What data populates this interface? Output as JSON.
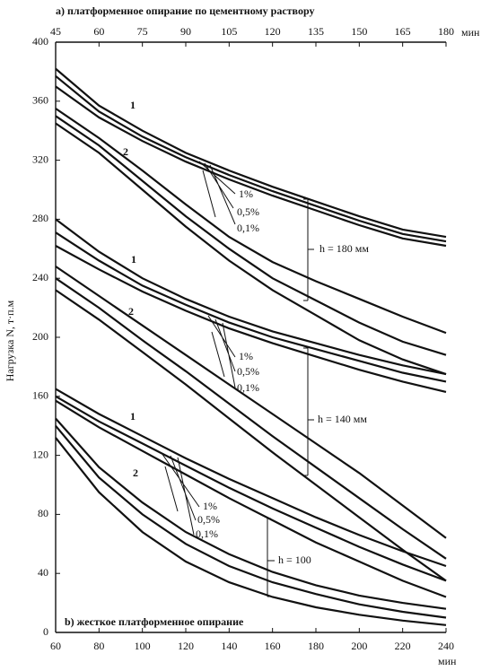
{
  "chart_data": {
    "type": "line",
    "title": "а) платформенное опирание по цементному раствору",
    "subtitle": "b) жесткое платформенное опирание",
    "ylabel": "Нагрузка N, т·п.м",
    "xlabel": "мин",
    "x2label": "мин",
    "xlim": [
      60,
      240
    ],
    "xticks": [
      60,
      80,
      100,
      120,
      140,
      160,
      180,
      200,
      220,
      240
    ],
    "x2lim": [
      45,
      180
    ],
    "x2ticks": [
      45,
      60,
      75,
      90,
      105,
      120,
      135,
      150,
      165,
      180
    ],
    "ylim": [
      0,
      400
    ],
    "yticks": [
      0,
      40,
      80,
      120,
      160,
      200,
      240,
      280,
      320,
      360,
      400
    ],
    "color": "#111111",
    "series": [
      {
        "axis": "x2",
        "x": [
          45,
          60,
          75,
          90,
          105,
          120,
          135,
          150,
          165,
          180
        ],
        "values": [
          382,
          357,
          340,
          325,
          313,
          302,
          292,
          282,
          273,
          268
        ]
      },
      {
        "axis": "x2",
        "x": [
          45,
          60,
          75,
          90,
          105,
          120,
          135,
          150,
          165,
          180
        ],
        "values": [
          377,
          353,
          336,
          322,
          310,
          299,
          289,
          279,
          270,
          265
        ]
      },
      {
        "axis": "x2",
        "x": [
          45,
          60,
          75,
          90,
          105,
          120,
          135,
          150,
          165,
          180
        ],
        "values": [
          370,
          349,
          333,
          319,
          307,
          296,
          286,
          276,
          267,
          262
        ]
      },
      {
        "axis": "x2",
        "x": [
          45,
          60,
          75,
          90,
          105,
          120,
          135,
          150,
          165,
          180
        ],
        "values": [
          355,
          335,
          313,
          290,
          268,
          251,
          238,
          226,
          214,
          203
        ]
      },
      {
        "axis": "x2",
        "x": [
          45,
          60,
          75,
          90,
          105,
          120,
          135,
          150,
          165,
          180
        ],
        "values": [
          350,
          330,
          306,
          282,
          260,
          240,
          225,
          210,
          197,
          188
        ]
      },
      {
        "axis": "x2",
        "x": [
          45,
          60,
          75,
          90,
          105,
          120,
          135,
          150,
          165,
          180
        ],
        "values": [
          345,
          325,
          300,
          275,
          252,
          232,
          215,
          198,
          185,
          175
        ]
      },
      {
        "axis": "x2",
        "x": [
          45,
          60,
          75,
          90,
          105,
          120,
          135,
          150,
          165,
          180
        ],
        "values": [
          280,
          258,
          240,
          226,
          214,
          204,
          196,
          188,
          181,
          175
        ]
      },
      {
        "axis": "x2",
        "x": [
          45,
          60,
          75,
          90,
          105,
          120,
          135,
          150,
          165,
          180
        ],
        "values": [
          271,
          252,
          235,
          222,
          210,
          200,
          192,
          184,
          176,
          170
        ]
      },
      {
        "axis": "x2",
        "x": [
          45,
          60,
          75,
          90,
          105,
          120,
          135,
          150,
          165,
          180
        ],
        "values": [
          262,
          246,
          231,
          218,
          206,
          196,
          187,
          178,
          170,
          163
        ]
      },
      {
        "axis": "x2",
        "x": [
          45,
          60,
          75,
          90,
          105,
          120,
          135,
          150,
          165,
          180
        ],
        "values": [
          248,
          228,
          208,
          188,
          168,
          148,
          128,
          108,
          86,
          64
        ]
      },
      {
        "axis": "x2",
        "x": [
          45,
          60,
          75,
          90,
          105,
          120,
          135,
          150,
          165,
          180
        ],
        "values": [
          240,
          220,
          198,
          177,
          155,
          133,
          112,
          91,
          70,
          50
        ]
      },
      {
        "axis": "x2",
        "x": [
          45,
          60,
          75,
          90,
          105,
          120,
          135,
          150,
          165,
          180
        ],
        "values": [
          232,
          212,
          190,
          168,
          145,
          122,
          100,
          78,
          56,
          35
        ]
      },
      {
        "axis": "x",
        "x": [
          60,
          80,
          100,
          120,
          140,
          160,
          180,
          200,
          220,
          240
        ],
        "values": [
          165,
          148,
          133,
          118,
          104,
          91,
          78,
          66,
          55,
          45
        ]
      },
      {
        "axis": "x",
        "x": [
          60,
          80,
          100,
          120,
          140,
          160,
          180,
          200,
          220,
          240
        ],
        "values": [
          160,
          143,
          128,
          113,
          98,
          84,
          71,
          58,
          46,
          35
        ]
      },
      {
        "axis": "x",
        "x": [
          60,
          80,
          100,
          120,
          140,
          160,
          180,
          200,
          220,
          240
        ],
        "values": [
          157,
          139,
          123,
          107,
          91,
          76,
          61,
          48,
          35,
          24
        ]
      },
      {
        "axis": "x",
        "x": [
          60,
          80,
          100,
          120,
          140,
          160,
          180,
          200,
          220,
          240
        ],
        "values": [
          145,
          112,
          88,
          68,
          53,
          41,
          32,
          25,
          20,
          16
        ]
      },
      {
        "axis": "x",
        "x": [
          60,
          80,
          100,
          120,
          140,
          160,
          180,
          200,
          220,
          240
        ],
        "values": [
          140,
          105,
          80,
          60,
          45,
          34,
          26,
          19,
          14,
          10
        ]
      },
      {
        "axis": "x",
        "x": [
          60,
          80,
          100,
          120,
          140,
          160,
          180,
          200,
          220,
          240
        ],
        "values": [
          132,
          95,
          68,
          48,
          34,
          24,
          17,
          12,
          8,
          5
        ]
      }
    ],
    "annotations": [
      "1",
      "2",
      "1%",
      "0,5%",
      "0,1%",
      "h = 180 мм",
      "1",
      "2",
      "1%",
      "0,5%",
      "0,1%",
      "h = 140 мм",
      "1",
      "2",
      "1%",
      "0,5%",
      "0,1%",
      "h = 100"
    ]
  }
}
